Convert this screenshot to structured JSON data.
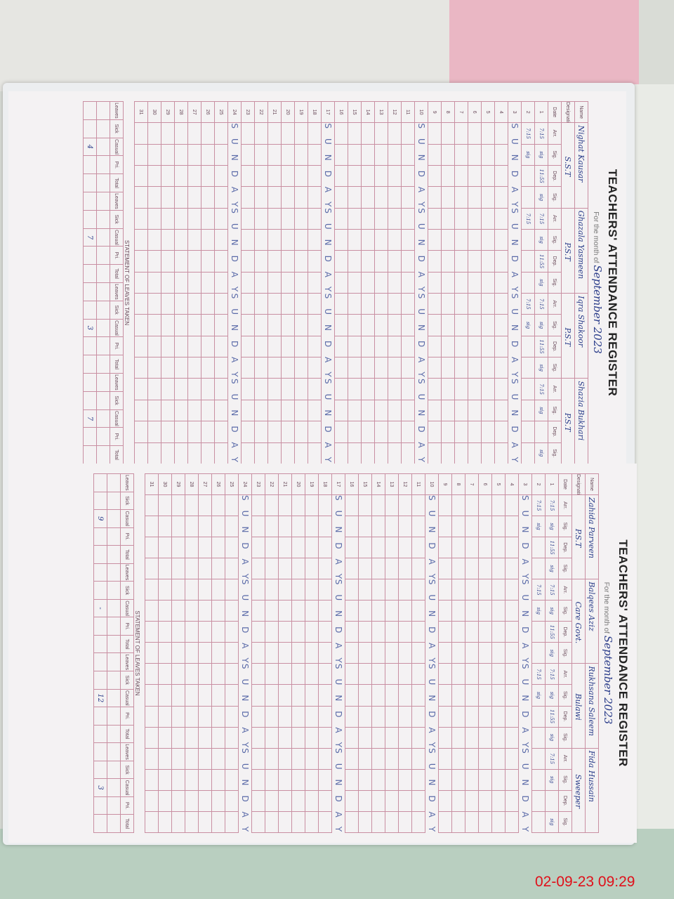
{
  "register": {
    "title": "TEACHERS' ATTENDANCE REGISTER",
    "month_label": "For the month of",
    "month": "September 2023",
    "columns": [
      "Date",
      "Arr.",
      "Sig.",
      "Dep.",
      "Sig."
    ],
    "sub_columns": [
      "Arr.",
      "Sig.",
      "Dep.",
      "Sig."
    ],
    "name_label": "Name",
    "designation_label": "Designation",
    "sunday_text": "SUNDAY",
    "sunday_rows": [
      3,
      10,
      17,
      24
    ],
    "statement_title": "STATEMENT OF LEAVES TAKEN",
    "statement_columns": [
      "Leaves",
      "Sick",
      "Casual",
      "Pri.",
      "Total"
    ]
  },
  "pages": [
    {
      "teachers": [
        {
          "name": "Nighat Kausar",
          "designation": "S.S.T"
        },
        {
          "name": "Ghazala Yasmeen",
          "designation": "P.S.T"
        },
        {
          "name": "Iqra Shakoor",
          "designation": "P.S.T"
        },
        {
          "name": "Shazia Bukhari",
          "designation": "P.S.T"
        }
      ],
      "entries": {
        "1": [
          "7:15",
          "sig",
          "11:55",
          "sig",
          "7:15",
          "sig",
          "11:55",
          "sig",
          "7:15",
          "sig",
          "11:55",
          "sig",
          "7:15",
          "sig",
          "",
          "sig"
        ],
        "2": [
          "7:15",
          "sig",
          "",
          "",
          "7:15",
          "",
          "",
          "",
          "7:15",
          "sig",
          "",
          "",
          "",
          "",
          "",
          ""
        ]
      },
      "statement_values": [
        "4",
        "7",
        "3",
        "7"
      ]
    },
    {
      "teachers": [
        {
          "name": "Zahida Parveen",
          "designation": "P.S.T"
        },
        {
          "name": "Balqees Aziz",
          "designation": "Care Govt."
        },
        {
          "name": "Rukhsana Saleem",
          "designation": "Bulawi"
        },
        {
          "name": "Fida Hussain",
          "designation": "Sweeper"
        }
      ],
      "entries": {
        "1": [
          "7:15",
          "sig",
          "11:55",
          "sig",
          "7:15",
          "sig",
          "11:55",
          "sig",
          "7:15",
          "sig",
          "11:55",
          "sig",
          "7:15",
          "sig",
          "",
          "sig"
        ],
        "2": [
          "7:15",
          "sig",
          "",
          "",
          "7:15",
          "sig",
          "",
          "",
          "7:15",
          "sig",
          "",
          "",
          "",
          "",
          "",
          ""
        ]
      },
      "statement_values": [
        "9",
        "-",
        "12",
        "3"
      ]
    }
  ],
  "timestamp": "02-09-23  09:29"
}
